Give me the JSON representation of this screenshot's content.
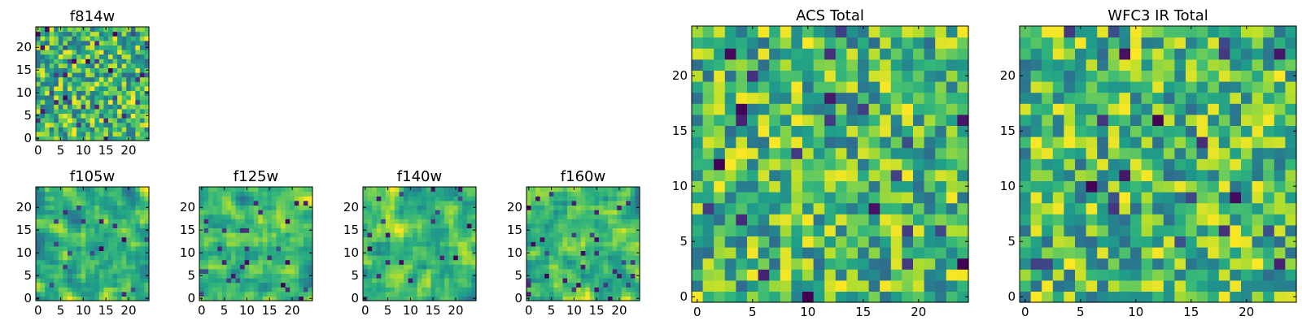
{
  "figure": {
    "colormap": "viridis",
    "background": "#ffffff"
  },
  "chart_data": [
    {
      "type": "heatmap",
      "title": "f814w",
      "grid": false,
      "xlim": [
        -0.5,
        24.5
      ],
      "ylim": [
        -0.5,
        24.5
      ],
      "xticks": [
        "0",
        "5",
        "10",
        "15",
        "20"
      ],
      "yticks": [
        "0",
        "5",
        "10",
        "15",
        "20"
      ],
      "size": [
        25,
        25
      ],
      "seed": 11,
      "smooth": 0,
      "dark_fraction": 0.05
    },
    {
      "type": "heatmap",
      "title": "f105w",
      "grid": false,
      "xlim": [
        -0.5,
        24.5
      ],
      "ylim": [
        -0.5,
        24.5
      ],
      "xticks": [
        "0",
        "5",
        "10",
        "15",
        "20"
      ],
      "yticks": [
        "0",
        "5",
        "10",
        "15",
        "20"
      ],
      "size": [
        25,
        25
      ],
      "seed": 23,
      "smooth": 1,
      "dark_fraction": 0.03
    },
    {
      "type": "heatmap",
      "title": "f125w",
      "grid": false,
      "xlim": [
        -0.5,
        24.5
      ],
      "ylim": [
        -0.5,
        24.5
      ],
      "xticks": [
        "0",
        "5",
        "10",
        "15",
        "20"
      ],
      "yticks": [
        "0",
        "5",
        "10",
        "15",
        "20"
      ],
      "size": [
        25,
        25
      ],
      "seed": 37,
      "smooth": 1,
      "dark_fraction": 0.04
    },
    {
      "type": "heatmap",
      "title": "f140w",
      "grid": false,
      "xlim": [
        -0.5,
        24.5
      ],
      "ylim": [
        -0.5,
        24.5
      ],
      "xticks": [
        "0",
        "5",
        "10",
        "15",
        "20"
      ],
      "yticks": [
        "0",
        "5",
        "10",
        "15",
        "20"
      ],
      "size": [
        25,
        25
      ],
      "seed": 41,
      "smooth": 1,
      "dark_fraction": 0.04
    },
    {
      "type": "heatmap",
      "title": "f160w",
      "grid": false,
      "xlim": [
        -0.5,
        24.5
      ],
      "ylim": [
        -0.5,
        24.5
      ],
      "xticks": [
        "0",
        "5",
        "10",
        "15",
        "20"
      ],
      "yticks": [
        "0",
        "5",
        "10",
        "15",
        "20"
      ],
      "size": [
        25,
        25
      ],
      "seed": 53,
      "smooth": 1,
      "dark_fraction": 0.04
    },
    {
      "type": "heatmap",
      "title": "ACS Total",
      "grid": false,
      "xlim": [
        -0.5,
        24.5
      ],
      "ylim": [
        -0.5,
        24.5
      ],
      "xticks": [
        "0",
        "5",
        "10",
        "15",
        "20"
      ],
      "yticks": [
        "0",
        "5",
        "10",
        "15",
        "20"
      ],
      "size": [
        25,
        25
      ],
      "seed": 67,
      "smooth": 0,
      "dark_fraction": 0.03
    },
    {
      "type": "heatmap",
      "title": "WFC3 IR Total",
      "grid": false,
      "xlim": [
        -0.5,
        24.5
      ],
      "ylim": [
        -0.5,
        24.5
      ],
      "xticks": [
        "0",
        "5",
        "10",
        "15",
        "20"
      ],
      "yticks": [
        "0",
        "5",
        "10",
        "15",
        "20"
      ],
      "size": [
        25,
        25
      ],
      "seed": 79,
      "smooth": 0,
      "dark_fraction": 0.03
    }
  ]
}
